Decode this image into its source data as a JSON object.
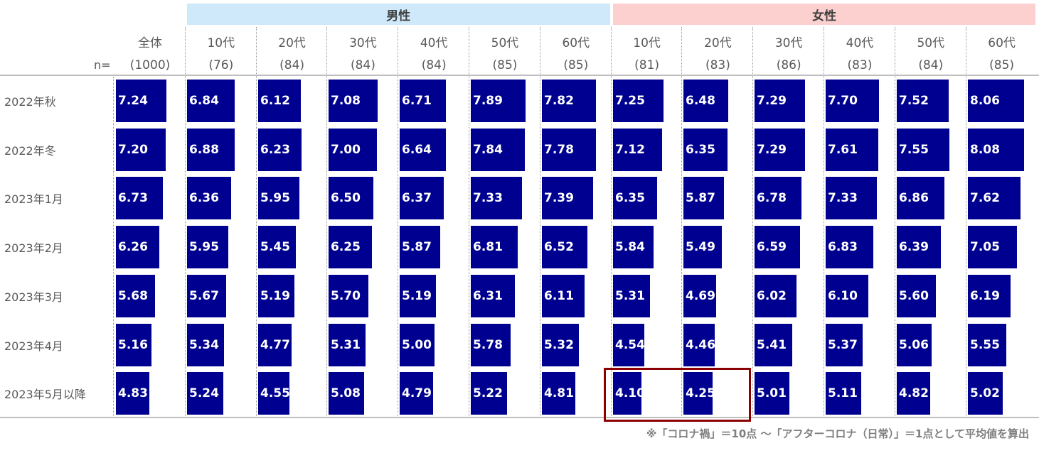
{
  "chart_data": {
    "type": "bar",
    "orientation": "horizontal-cells",
    "n_label": "n=",
    "groups": [
      {
        "name": "男性",
        "color": "#cfe9fb"
      },
      {
        "name": "女性",
        "color": "#fdd0d0"
      }
    ],
    "columns": [
      {
        "label": "全体",
        "n": "(1000)",
        "group": null
      },
      {
        "label": "10代",
        "n": "(76)",
        "group": 0
      },
      {
        "label": "20代",
        "n": "(84)",
        "group": 0
      },
      {
        "label": "30代",
        "n": "(84)",
        "group": 0
      },
      {
        "label": "40代",
        "n": "(84)",
        "group": 0
      },
      {
        "label": "50代",
        "n": "(85)",
        "group": 0
      },
      {
        "label": "60代",
        "n": "(85)",
        "group": 0
      },
      {
        "label": "10代",
        "n": "(81)",
        "group": 1
      },
      {
        "label": "20代",
        "n": "(83)",
        "group": 1
      },
      {
        "label": "30代",
        "n": "(86)",
        "group": 1
      },
      {
        "label": "40代",
        "n": "(83)",
        "group": 1
      },
      {
        "label": "50代",
        "n": "(84)",
        "group": 1
      },
      {
        "label": "60代",
        "n": "(85)",
        "group": 1
      }
    ],
    "rows": [
      {
        "label": "2022年秋",
        "values": [
          "7.24",
          "6.84",
          "6.12",
          "7.08",
          "6.71",
          "7.89",
          "7.82",
          "7.25",
          "6.48",
          "7.29",
          "7.70",
          "7.52",
          "8.06"
        ]
      },
      {
        "label": "2022年冬",
        "values": [
          "7.20",
          "6.88",
          "6.23",
          "7.00",
          "6.64",
          "7.84",
          "7.78",
          "7.12",
          "6.35",
          "7.29",
          "7.61",
          "7.55",
          "8.08"
        ]
      },
      {
        "label": "2023年1月",
        "values": [
          "6.73",
          "6.36",
          "5.95",
          "6.50",
          "6.37",
          "7.33",
          "7.39",
          "6.35",
          "5.87",
          "6.78",
          "7.33",
          "6.86",
          "7.62"
        ]
      },
      {
        "label": "2023年2月",
        "values": [
          "6.26",
          "5.95",
          "5.45",
          "6.25",
          "5.87",
          "6.81",
          "6.52",
          "5.84",
          "5.49",
          "6.59",
          "6.83",
          "6.39",
          "7.05"
        ]
      },
      {
        "label": "2023年3月",
        "values": [
          "5.68",
          "5.67",
          "5.19",
          "5.70",
          "5.19",
          "6.31",
          "6.11",
          "5.31",
          "4.69",
          "6.02",
          "6.10",
          "5.60",
          "6.19"
        ]
      },
      {
        "label": "2023年4月",
        "values": [
          "5.16",
          "5.34",
          "4.77",
          "5.31",
          "5.00",
          "5.78",
          "5.32",
          "4.54",
          "4.46",
          "5.41",
          "5.37",
          "5.06",
          "5.55"
        ]
      },
      {
        "label": "2023年5月以降",
        "values": [
          "4.83",
          "5.24",
          "4.55",
          "5.08",
          "4.79",
          "5.22",
          "4.81",
          "4.10",
          "4.25",
          "5.01",
          "5.11",
          "4.82",
          "5.02"
        ]
      }
    ],
    "value_range": [
      0,
      10
    ],
    "highlight": {
      "row": "2023年5月以降",
      "columns": [
        "10代",
        "20代"
      ],
      "group": "女性"
    },
    "bar_color": "#000090",
    "note": "※「コロナ禍」＝10点 〜「アフターコロナ（日常）」＝1点として平均値を算出"
  }
}
